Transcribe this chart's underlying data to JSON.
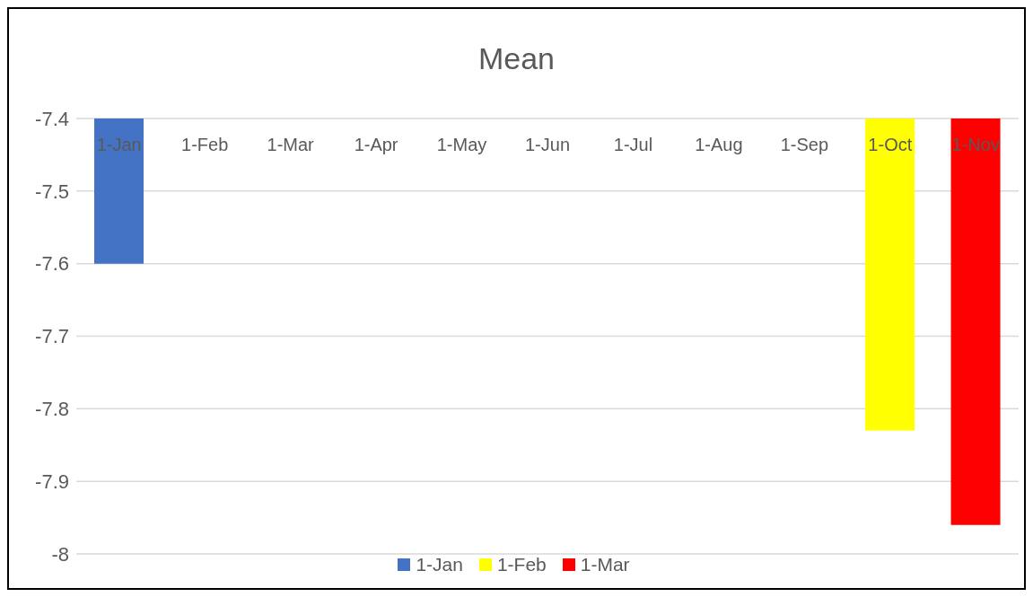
{
  "chart_data": {
    "type": "bar",
    "title": "Mean",
    "categories": [
      "1-Jan",
      "1-Feb",
      "1-Mar",
      "1-Apr",
      "1-May",
      "1-Jun",
      "1-Jul",
      "1-Aug",
      "1-Sep",
      "1-Oct",
      "1-Nov"
    ],
    "series": [
      {
        "name": "1-Jan",
        "color": "#4472c4",
        "values": [
          -7.6,
          null,
          null,
          null,
          null,
          null,
          null,
          null,
          null,
          null,
          null
        ]
      },
      {
        "name": "1-Feb",
        "color": "#ffff00",
        "values": [
          null,
          null,
          null,
          null,
          null,
          null,
          null,
          null,
          null,
          -7.83,
          null
        ]
      },
      {
        "name": "1-Mar",
        "color": "#ff0000",
        "values": [
          null,
          null,
          null,
          null,
          null,
          null,
          null,
          null,
          null,
          null,
          -7.96
        ]
      }
    ],
    "ylim": [
      -8,
      -7.4
    ],
    "yticks": [
      -7.4,
      -7.5,
      -7.6,
      -7.7,
      -7.8,
      -7.9,
      -8
    ],
    "grid": "y",
    "legend": "bottom"
  }
}
